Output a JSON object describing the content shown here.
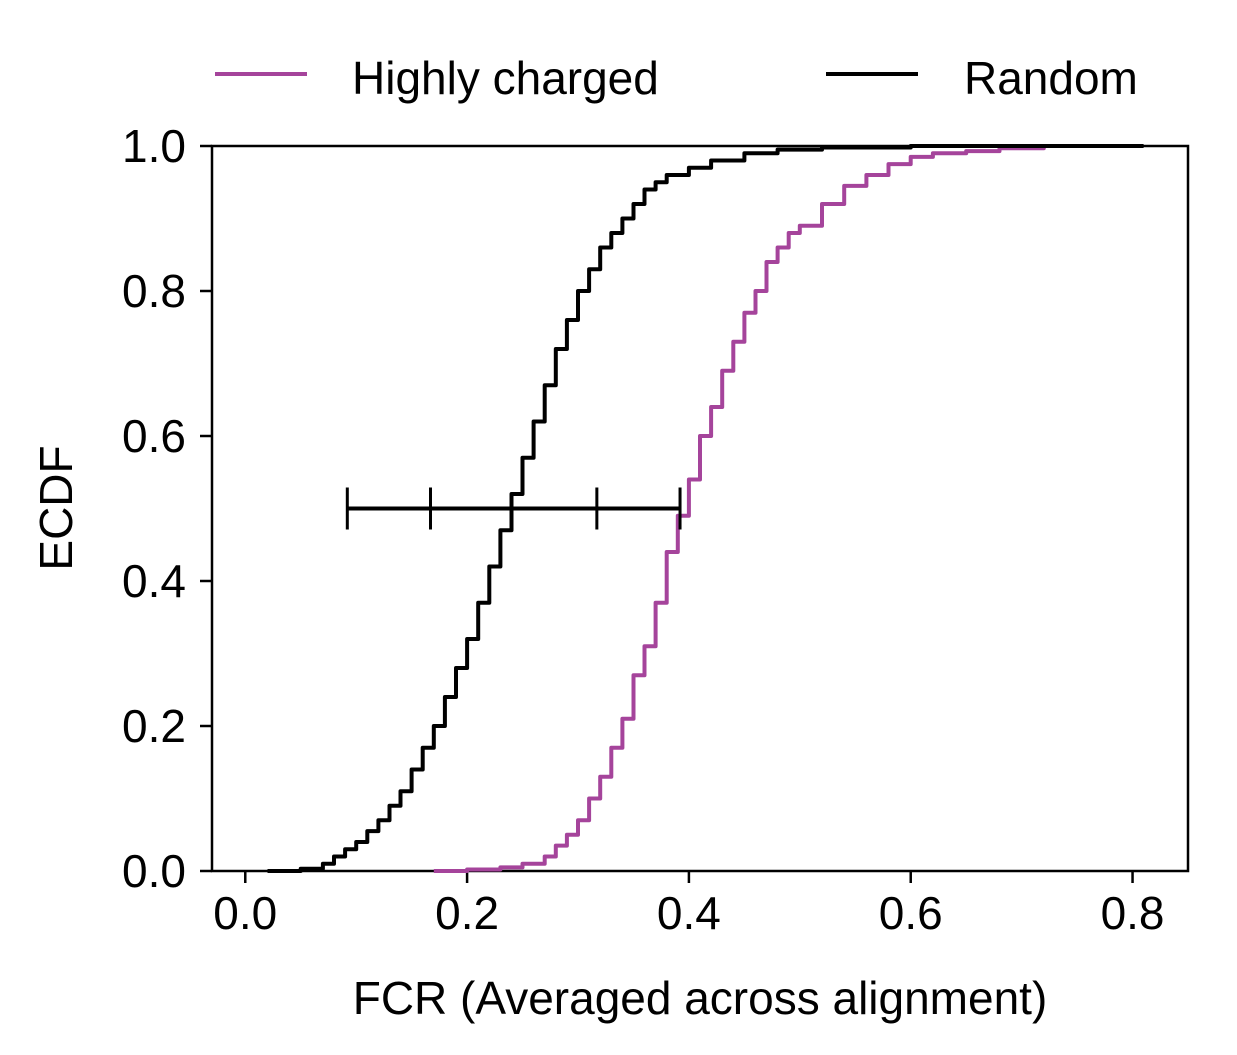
{
  "chart_data": {
    "type": "line",
    "title": "",
    "xlabel": "FCR (Averaged across alignment)",
    "ylabel": "ECDF",
    "xlim": [
      -0.03,
      0.85
    ],
    "ylim": [
      0.0,
      1.0
    ],
    "xticks": [
      0.0,
      0.2,
      0.4,
      0.6,
      0.8
    ],
    "xtick_labels": [
      "0.0",
      "0.2",
      "0.4",
      "0.6",
      "0.8"
    ],
    "yticks": [
      0.0,
      0.2,
      0.4,
      0.6,
      0.8,
      1.0
    ],
    "ytick_labels": [
      "0.0",
      "0.2",
      "0.4",
      "0.6",
      "0.8",
      "1.0"
    ],
    "grid": false,
    "legend_position": "top, above plot",
    "series": [
      {
        "name": "Highly charged",
        "color": "#a5449b",
        "x": [
          0.17,
          0.2,
          0.23,
          0.25,
          0.27,
          0.28,
          0.29,
          0.3,
          0.31,
          0.32,
          0.33,
          0.34,
          0.35,
          0.36,
          0.37,
          0.38,
          0.39,
          0.4,
          0.41,
          0.42,
          0.43,
          0.44,
          0.45,
          0.46,
          0.47,
          0.48,
          0.49,
          0.5,
          0.52,
          0.54,
          0.56,
          0.58,
          0.6,
          0.62,
          0.65,
          0.68,
          0.72
        ],
        "y": [
          0.0,
          0.002,
          0.005,
          0.01,
          0.02,
          0.035,
          0.05,
          0.07,
          0.1,
          0.13,
          0.17,
          0.21,
          0.27,
          0.31,
          0.37,
          0.44,
          0.49,
          0.54,
          0.6,
          0.64,
          0.69,
          0.73,
          0.77,
          0.8,
          0.84,
          0.86,
          0.88,
          0.89,
          0.92,
          0.945,
          0.96,
          0.975,
          0.985,
          0.99,
          0.993,
          0.997,
          1.0
        ]
      },
      {
        "name": "Random",
        "color": "#000000",
        "x": [
          0.02,
          0.05,
          0.07,
          0.08,
          0.09,
          0.1,
          0.11,
          0.12,
          0.13,
          0.14,
          0.15,
          0.16,
          0.17,
          0.18,
          0.19,
          0.2,
          0.21,
          0.22,
          0.23,
          0.24,
          0.25,
          0.26,
          0.27,
          0.28,
          0.29,
          0.3,
          0.31,
          0.32,
          0.33,
          0.34,
          0.35,
          0.36,
          0.37,
          0.38,
          0.4,
          0.42,
          0.45,
          0.48,
          0.52,
          0.6,
          0.7,
          0.81
        ],
        "y": [
          0.0,
          0.003,
          0.01,
          0.02,
          0.03,
          0.04,
          0.055,
          0.07,
          0.09,
          0.11,
          0.14,
          0.17,
          0.2,
          0.24,
          0.28,
          0.32,
          0.37,
          0.42,
          0.47,
          0.52,
          0.57,
          0.62,
          0.67,
          0.72,
          0.76,
          0.8,
          0.83,
          0.86,
          0.88,
          0.9,
          0.92,
          0.94,
          0.95,
          0.96,
          0.97,
          0.98,
          0.99,
          0.995,
          0.998,
          1.0,
          1.0,
          1.0
        ]
      }
    ],
    "annotations": [
      {
        "type": "errorbar",
        "y": 0.5,
        "xmin": 0.092,
        "xmax": 0.392,
        "inner_ticks_x": [
          0.167,
          0.317
        ],
        "color": "#000000"
      }
    ]
  }
}
